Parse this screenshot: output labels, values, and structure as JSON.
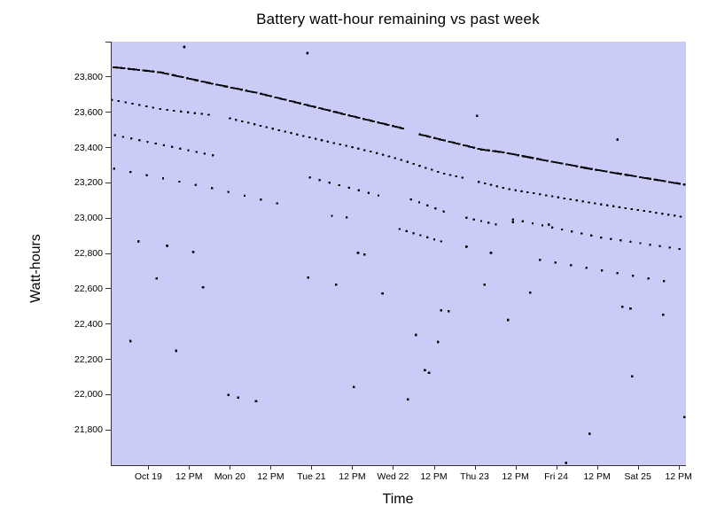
{
  "page": {
    "background": "#ffffff"
  },
  "chart_data": {
    "type": "scatter",
    "title": "Battery watt-hour remaining vs past week",
    "xlabel": "Time",
    "ylabel": "Watt-hours",
    "plot_bg_color": "#cbcbf8",
    "point_color": "#0a0a0a",
    "axis_color": "#333333",
    "legend": "none",
    "grid": "off",
    "x_unit": "days from window start (window spans about Oct 18 afternoon to Oct 25 afternoon, ticks every 12 hours)",
    "xlim_days": [
      0,
      7.04
    ],
    "ylim": [
      21600,
      24000
    ],
    "x_ticks": [
      {
        "t": 0.46,
        "label": "Oct 19"
      },
      {
        "t": 0.96,
        "label": "12 PM"
      },
      {
        "t": 1.46,
        "label": "Mon 20"
      },
      {
        "t": 1.96,
        "label": "12 PM"
      },
      {
        "t": 2.46,
        "label": "Tue 21"
      },
      {
        "t": 2.96,
        "label": "12 PM"
      },
      {
        "t": 3.46,
        "label": "Wed 22"
      },
      {
        "t": 3.96,
        "label": "12 PM"
      },
      {
        "t": 4.46,
        "label": "Thu 23"
      },
      {
        "t": 4.96,
        "label": "12 PM"
      },
      {
        "t": 5.46,
        "label": "Fri 24"
      },
      {
        "t": 5.96,
        "label": "12 PM"
      },
      {
        "t": 6.46,
        "label": "Sat 25"
      },
      {
        "t": 6.96,
        "label": "12 PM"
      }
    ],
    "y_ticks": [
      {
        "v": 24000,
        "label": ""
      },
      {
        "v": 23800,
        "label": "23,800"
      },
      {
        "v": 23600,
        "label": "23,600"
      },
      {
        "v": 23400,
        "label": "23,400"
      },
      {
        "v": 23200,
        "label": "23,200"
      },
      {
        "v": 23000,
        "label": "23,000"
      },
      {
        "v": 22800,
        "label": "22,800"
      },
      {
        "v": 22600,
        "label": "22,600"
      },
      {
        "v": 22400,
        "label": "22,400"
      },
      {
        "v": 22200,
        "label": "22,200"
      },
      {
        "v": 22000,
        "label": "22,000"
      },
      {
        "v": 21800,
        "label": "21,800"
      }
    ],
    "series": [
      {
        "name": "discharge-band-1-before-step",
        "marker": [
          3.2,
          2.2
        ],
        "step": 0.03,
        "gap_every": 6,
        "anchors": [
          [
            0.03,
            23855
          ],
          [
            0.6,
            23826
          ],
          [
            1.2,
            23765
          ],
          [
            1.8,
            23708
          ],
          [
            2.4,
            23640
          ],
          [
            3.0,
            23572
          ],
          [
            3.61,
            23504
          ]
        ]
      },
      {
        "name": "discharge-band-1-after-step",
        "marker": [
          3.2,
          2.2
        ],
        "step": 0.03,
        "gap_every": 6,
        "anchors": [
          [
            3.78,
            23474
          ],
          [
            4.53,
            23389
          ],
          [
            4.78,
            23374
          ],
          [
            5.87,
            23279
          ],
          [
            7.04,
            23189
          ]
        ]
      },
      {
        "name": "discharge-band-2a",
        "marker": [
          2.6,
          2.2
        ],
        "step": 0.085,
        "anchors": [
          [
            0.0,
            23670
          ],
          [
            0.3,
            23645
          ],
          [
            0.6,
            23618
          ],
          [
            1.2,
            23585
          ]
        ]
      },
      {
        "name": "discharge-band-2b",
        "marker": [
          2.6,
          2.2
        ],
        "step": 0.075,
        "anchors": [
          [
            1.45,
            23565
          ],
          [
            2.4,
            23460
          ],
          [
            3.2,
            23375
          ],
          [
            3.55,
            23330
          ],
          [
            4.05,
            23255
          ],
          [
            4.35,
            23225
          ]
        ]
      },
      {
        "name": "discharge-band-2c",
        "marker": [
          2.6,
          2.2
        ],
        "step": 0.075,
        "anchors": [
          [
            4.5,
            23205
          ],
          [
            4.86,
            23165
          ],
          [
            5.9,
            23085
          ],
          [
            7.03,
            23005
          ]
        ]
      },
      {
        "name": "discharge-band-3a",
        "marker": [
          2.4,
          2.4
        ],
        "step": 0.1,
        "anchors": [
          [
            0.04,
            23470
          ],
          [
            0.65,
            23412
          ],
          [
            1.28,
            23352
          ]
        ]
      },
      {
        "name": "discharge-band-3b",
        "marker": [
          2.4,
          2.4
        ],
        "step": 0.12,
        "anchors": [
          [
            2.43,
            23230
          ],
          [
            3.3,
            23125
          ]
        ]
      },
      {
        "name": "discharge-band-3c",
        "marker": [
          2.4,
          2.4
        ],
        "step": 0.1,
        "anchors": [
          [
            3.67,
            23106
          ],
          [
            4.07,
            23038
          ]
        ]
      },
      {
        "name": "discharge-band-3d",
        "marker": [
          2.4,
          2.4
        ],
        "step": 0.09,
        "anchors": [
          [
            4.35,
            23002
          ],
          [
            4.73,
            22962
          ]
        ]
      },
      {
        "name": "discharge-band-3e",
        "marker": [
          2.4,
          2.4
        ],
        "step": 0.12,
        "anchors": [
          [
            4.92,
            22993
          ],
          [
            6.0,
            22890
          ],
          [
            6.99,
            22823
          ]
        ]
      },
      {
        "name": "discharge-band-4a",
        "marker": [
          2.4,
          2.4
        ],
        "step": 0.2,
        "anchors": [
          [
            0.03,
            23280
          ],
          [
            0.62,
            23226
          ],
          [
            1.27,
            23166
          ],
          [
            2.2,
            23065
          ]
        ]
      },
      {
        "name": "discharge-band-4b",
        "marker": [
          2.4,
          2.4
        ],
        "step": 0.18,
        "anchors": [
          [
            2.7,
            23013
          ],
          [
            2.9,
            23003
          ]
        ]
      },
      {
        "name": "discharge-band-4c",
        "marker": [
          2.4,
          2.4
        ],
        "step": 0.085,
        "anchors": [
          [
            3.53,
            22938
          ],
          [
            4.04,
            22868
          ]
        ]
      },
      {
        "name": "discharge-band-4d",
        "marker": [
          2.4,
          2.4
        ],
        "step": 0.19,
        "anchors": [
          [
            5.25,
            22763
          ],
          [
            6.9,
            22633
          ]
        ]
      }
    ],
    "outliers": {
      "name": "isolated-readings",
      "marker": [
        2.7,
        2.7
      ],
      "points": [
        [
          0.89,
          23970
        ],
        [
          2.4,
          23935
        ],
        [
          4.48,
          23580
        ],
        [
          6.2,
          23445
        ],
        [
          0.33,
          22868
        ],
        [
          0.68,
          22843
        ],
        [
          1.0,
          22808
        ],
        [
          0.55,
          22658
        ],
        [
          1.12,
          22608
        ],
        [
          2.41,
          22663
        ],
        [
          2.75,
          22623
        ],
        [
          3.02,
          22803
        ],
        [
          3.1,
          22793
        ],
        [
          3.32,
          22573
        ],
        [
          4.35,
          22838
        ],
        [
          4.65,
          22803
        ],
        [
          4.57,
          22623
        ],
        [
          5.13,
          22578
        ],
        [
          0.23,
          22303
        ],
        [
          0.79,
          22248
        ],
        [
          1.43,
          21998
        ],
        [
          1.55,
          21983
        ],
        [
          1.77,
          21963
        ],
        [
          2.97,
          22043
        ],
        [
          4.04,
          22478
        ],
        [
          4.13,
          22473
        ],
        [
          4.86,
          22423
        ],
        [
          4.92,
          22978
        ],
        [
          5.36,
          22963
        ],
        [
          6.26,
          22498
        ],
        [
          6.36,
          22488
        ],
        [
          6.76,
          22453
        ],
        [
          3.73,
          22338
        ],
        [
          4.0,
          22298
        ],
        [
          3.84,
          22138
        ],
        [
          3.89,
          22123
        ],
        [
          6.38,
          22103
        ],
        [
          3.63,
          21973
        ],
        [
          7.02,
          21873
        ],
        [
          5.86,
          21778
        ],
        [
          5.57,
          21613
        ]
      ]
    }
  }
}
